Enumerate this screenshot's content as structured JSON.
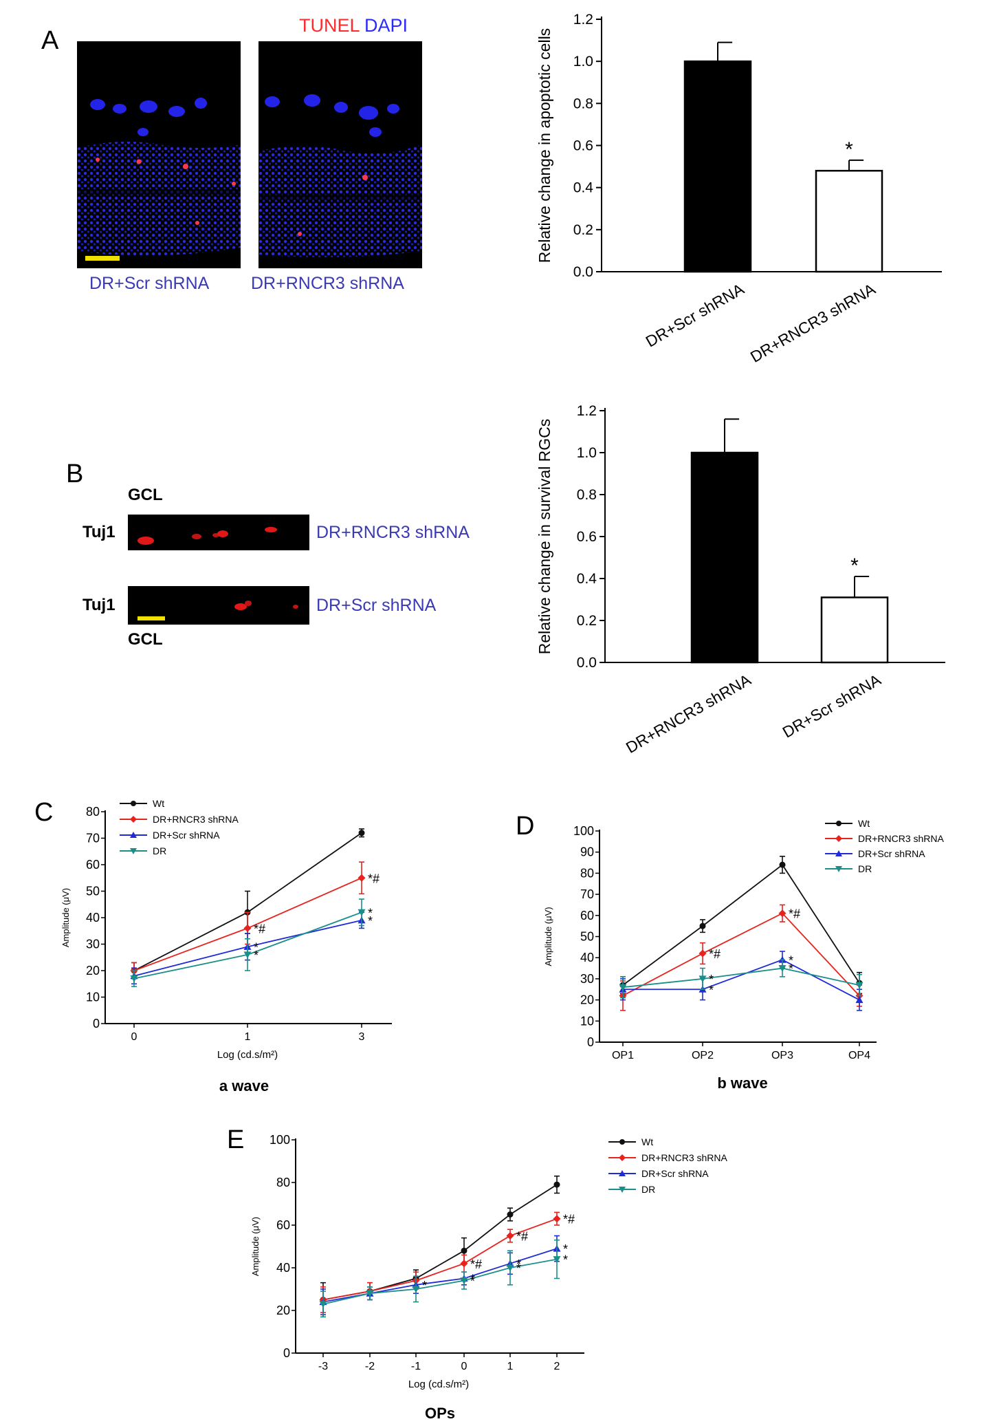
{
  "panels": {
    "A": {
      "label": "A",
      "legend": {
        "tunel": "TUNEL",
        "dapi": "DAPI",
        "tunel_color": "#ff2a2a",
        "dapi_color": "#2b2bff"
      },
      "captions": [
        "DR+Scr shRNA",
        "DR+RNCR3 shRNA"
      ]
    },
    "B": {
      "label": "B",
      "gcl_top": "GCL",
      "gcl_bottom": "GCL",
      "rows": [
        {
          "marker": "Tuj1",
          "caption": "DR+RNCR3 shRNA"
        },
        {
          "marker": "Tuj1",
          "caption": "DR+Scr shRNA"
        }
      ]
    },
    "C": {
      "label": "C"
    },
    "D": {
      "label": "D"
    },
    "E": {
      "label": "E"
    }
  },
  "colors": {
    "wt": "#111111",
    "rncr3": "#e8231e",
    "scr": "#1f2bd8",
    "dr": "#1a8f8a"
  },
  "chart_data": [
    {
      "id": "bar-A",
      "type": "bar",
      "categories": [
        "DR+Scr shRNA",
        "DR+RNCR3 shRNA"
      ],
      "values": [
        1.0,
        0.48
      ],
      "errors": [
        0.09,
        0.05
      ],
      "fills": [
        "#000000",
        "#ffffff"
      ],
      "annotations": [
        "",
        "*"
      ],
      "ylabel": "Relative change in apoptotic cells",
      "ylim": [
        0,
        1.2
      ],
      "yticks": [
        "0.0",
        "0.2",
        "0.4",
        "0.6",
        "0.8",
        "1.0",
        "1.2"
      ]
    },
    {
      "id": "bar-B",
      "type": "bar",
      "categories": [
        "DR+RNCR3 shRNA",
        "DR+Scr shRNA"
      ],
      "values": [
        1.0,
        0.31
      ],
      "errors": [
        0.16,
        0.1
      ],
      "fills": [
        "#000000",
        "#ffffff"
      ],
      "annotations": [
        "",
        "*"
      ],
      "ylabel": "Relative change in survival RGCs",
      "ylim": [
        0,
        1.2
      ],
      "yticks": [
        "0.0",
        "0.2",
        "0.4",
        "0.6",
        "0.8",
        "1.0",
        "1.2"
      ]
    },
    {
      "id": "line-C",
      "type": "line",
      "x": [
        "0",
        "1",
        "3"
      ],
      "xlabel": "Log (cd.s/m²)",
      "title": "a wave",
      "ylabel": "Amplitude (μV)",
      "ylim": [
        0,
        80
      ],
      "yticks": [
        "0",
        "10",
        "20",
        "30",
        "40",
        "50",
        "60",
        "70",
        "80"
      ],
      "series": [
        {
          "name": "Wt",
          "values": [
            20,
            42,
            72
          ],
          "errors": [
            3,
            8,
            1.5
          ],
          "marks": [
            "",
            "",
            ""
          ]
        },
        {
          "name": "DR+RNCR3 shRNA",
          "values": [
            20,
            36,
            55
          ],
          "errors": [
            3,
            6,
            6
          ],
          "marks": [
            "",
            "*#",
            "*#"
          ]
        },
        {
          "name": "DR+Scr shRNA",
          "values": [
            18,
            29,
            39
          ],
          "errors": [
            3,
            5,
            3
          ],
          "marks": [
            "",
            "*",
            "*"
          ]
        },
        {
          "name": "DR",
          "values": [
            17,
            26,
            42
          ],
          "errors": [
            3,
            6,
            5
          ],
          "marks": [
            "",
            "*",
            "*"
          ]
        }
      ]
    },
    {
      "id": "line-D",
      "type": "line",
      "x": [
        "OP1",
        "OP2",
        "OP3",
        "OP4"
      ],
      "xlabel": "",
      "title": "b wave",
      "ylabel": "Amplitude (μV)",
      "ylim": [
        0,
        100
      ],
      "yticks": [
        "0",
        "10",
        "20",
        "30",
        "40",
        "50",
        "60",
        "70",
        "80",
        "90",
        "100"
      ],
      "series": [
        {
          "name": "Wt",
          "values": [
            27,
            55,
            84,
            28
          ],
          "errors": [
            4,
            3,
            4,
            5
          ],
          "marks": [
            "",
            "",
            "",
            ""
          ]
        },
        {
          "name": "DR+RNCR3 shRNA",
          "values": [
            22,
            42,
            61,
            22
          ],
          "errors": [
            7,
            5,
            4,
            5
          ],
          "marks": [
            "",
            "*#",
            "*#",
            ""
          ]
        },
        {
          "name": "DR+Scr shRNA",
          "values": [
            25,
            25,
            39,
            20
          ],
          "errors": [
            5,
            5,
            4,
            5
          ],
          "marks": [
            "",
            "*",
            "*",
            ""
          ]
        },
        {
          "name": "DR",
          "values": [
            26,
            30,
            35,
            27
          ],
          "errors": [
            5,
            5,
            4,
            5
          ],
          "marks": [
            "",
            "*",
            "*",
            ""
          ]
        }
      ]
    },
    {
      "id": "line-E",
      "type": "line",
      "x": [
        "-3",
        "-2",
        "-1",
        "0",
        "1",
        "2"
      ],
      "xlabel": "Log (cd.s/m²)",
      "title": "OPs",
      "ylabel": "Amplitude (μV)",
      "ylim": [
        0,
        100
      ],
      "yticks": [
        "0",
        "20",
        "40",
        "60",
        "80",
        "100"
      ],
      "series": [
        {
          "name": "Wt",
          "values": [
            25,
            29,
            35,
            48,
            65,
            79
          ],
          "errors": [
            8,
            4,
            4,
            6,
            3,
            4
          ],
          "marks": [
            "",
            "",
            "",
            "",
            "",
            ""
          ]
        },
        {
          "name": "DR+RNCR3 shRNA",
          "values": [
            25,
            29,
            34,
            42,
            55,
            63
          ],
          "errors": [
            6,
            4,
            4,
            4,
            3,
            3
          ],
          "marks": [
            "",
            "",
            "",
            "*#",
            "*#",
            "*#"
          ]
        },
        {
          "name": "DR+Scr shRNA",
          "values": [
            24,
            28,
            32,
            35,
            42,
            49
          ],
          "errors": [
            6,
            3,
            4,
            3,
            5,
            6
          ],
          "marks": [
            "",
            "",
            "*",
            "*",
            "*",
            "*"
          ]
        },
        {
          "name": "DR",
          "values": [
            23,
            28,
            30,
            34,
            40,
            44
          ],
          "errors": [
            6,
            3,
            6,
            4,
            8,
            9
          ],
          "marks": [
            "",
            "",
            "",
            "*",
            "*",
            "*"
          ]
        }
      ]
    }
  ]
}
